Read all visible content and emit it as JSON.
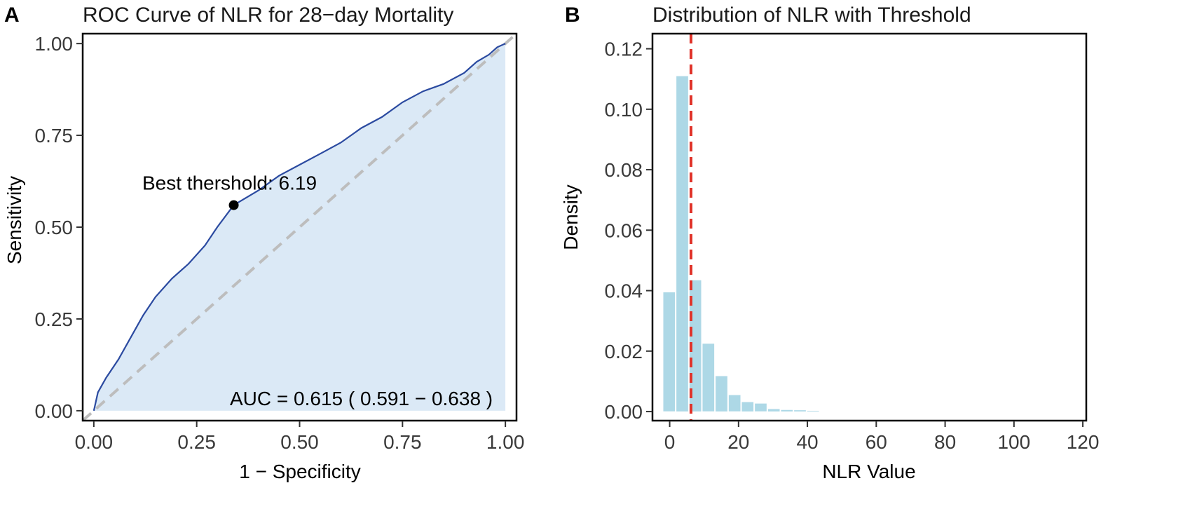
{
  "panels": {
    "a": {
      "letter": "A",
      "title": "ROC Curve of NLR for 28−day Mortality"
    },
    "b": {
      "letter": "B",
      "title": "Distribution of NLR with Threshold"
    }
  },
  "chart_data": [
    {
      "type": "line",
      "title": "ROC Curve of NLR for 28−day Mortality",
      "xlabel": "1 − Specificity",
      "ylabel": "Sensitivity",
      "xlim": [
        0,
        1
      ],
      "ylim": [
        0,
        1
      ],
      "x_ticks": [
        "0.00",
        "0.25",
        "0.50",
        "0.75",
        "1.00"
      ],
      "y_ticks": [
        "0.00",
        "0.25",
        "0.50",
        "0.75",
        "1.00"
      ],
      "series": [
        {
          "name": "ROC",
          "color": "#2b4aa0",
          "fill": "#dbe9f6",
          "x": [
            0,
            0.01,
            0.03,
            0.06,
            0.09,
            0.12,
            0.15,
            0.19,
            0.23,
            0.27,
            0.3,
            0.34,
            0.4,
            0.45,
            0.5,
            0.55,
            0.6,
            0.65,
            0.7,
            0.75,
            0.8,
            0.85,
            0.9,
            0.93,
            0.96,
            0.98,
            1.0
          ],
          "y": [
            0,
            0.05,
            0.09,
            0.14,
            0.2,
            0.26,
            0.31,
            0.36,
            0.4,
            0.45,
            0.5,
            0.56,
            0.6,
            0.64,
            0.67,
            0.7,
            0.73,
            0.77,
            0.8,
            0.84,
            0.87,
            0.89,
            0.92,
            0.95,
            0.97,
            0.99,
            1.0
          ]
        },
        {
          "name": "Reference",
          "color": "#bdbdbd",
          "dashed": true,
          "x": [
            0,
            1
          ],
          "y": [
            0,
            1
          ]
        }
      ],
      "point": {
        "x": 0.34,
        "y": 0.56,
        "label": "Best thershold: 6.19"
      },
      "annotation": {
        "text": "AUC = 0.615 ( 0.591 − 0.638 )",
        "color": "#e0332a"
      }
    },
    {
      "type": "bar",
      "title": "Distribution of NLR with Threshold",
      "xlabel": "NLR Value",
      "ylabel": "Density",
      "xlim": [
        -5,
        121
      ],
      "ylim": [
        -0.003,
        0.125
      ],
      "x_ticks": [
        0,
        20,
        40,
        60,
        80,
        100,
        120
      ],
      "y_ticks": [
        "0.00",
        "0.02",
        "0.04",
        "0.06",
        "0.08",
        "0.10",
        "0.12"
      ],
      "bin_width": 3.8,
      "bin_centers": [
        0,
        3.8,
        7.6,
        11.4,
        15.2,
        19,
        22.8,
        26.6,
        30.4,
        34.2,
        38,
        41.8
      ],
      "values": [
        0.0395,
        0.111,
        0.0435,
        0.0225,
        0.0118,
        0.0055,
        0.0032,
        0.0027,
        0.0009,
        0.0006,
        0.0005,
        0.0003
      ],
      "bar_color": "#add8e6",
      "threshold": {
        "x": 6.19,
        "color": "#e0332a"
      }
    }
  ]
}
